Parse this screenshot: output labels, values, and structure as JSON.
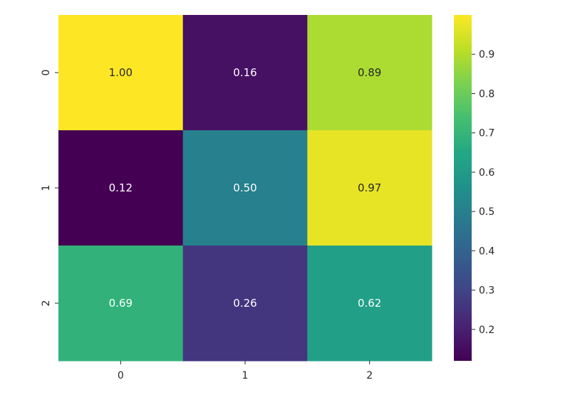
{
  "chart_data": {
    "type": "heatmap",
    "title": "",
    "xlabel": "",
    "ylabel": "",
    "x_categories": [
      "0",
      "1",
      "2"
    ],
    "y_categories": [
      "0",
      "1",
      "2"
    ],
    "values": [
      [
        1.0,
        0.16,
        0.89
      ],
      [
        0.12,
        0.5,
        0.97
      ],
      [
        0.69,
        0.26,
        0.62
      ]
    ],
    "cell_labels": [
      [
        "1.00",
        "0.16",
        "0.89"
      ],
      [
        "0.12",
        "0.50",
        "0.97"
      ],
      [
        "0.69",
        "0.26",
        "0.62"
      ]
    ],
    "colormap": "viridis",
    "color_range": [
      0.12,
      1.0
    ],
    "colorbar": {
      "ticks": [
        0.2,
        0.3,
        0.4,
        0.5,
        0.6,
        0.7,
        0.8,
        0.9
      ],
      "tick_labels": [
        "0.2",
        "0.3",
        "0.4",
        "0.5",
        "0.6",
        "0.7",
        "0.8",
        "0.9"
      ]
    },
    "grid": false,
    "legend": "colorbar-right"
  }
}
